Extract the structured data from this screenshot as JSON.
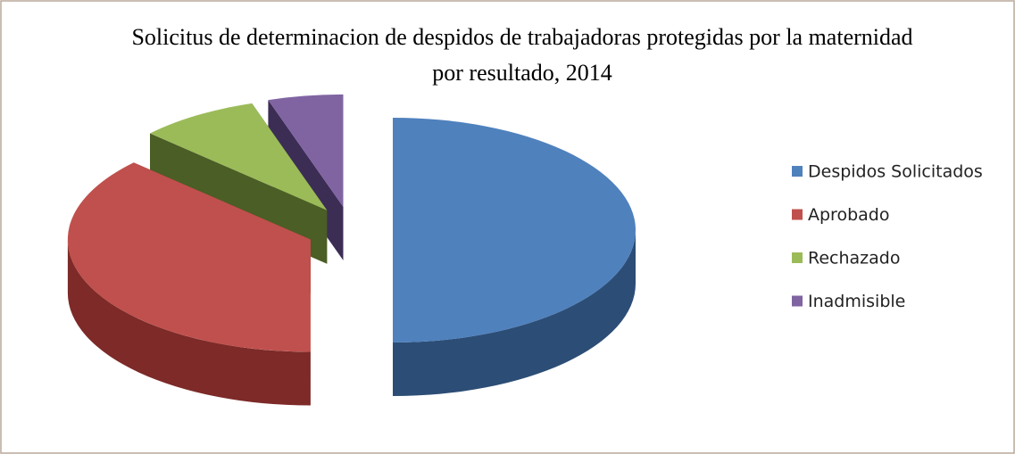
{
  "chart_data": {
    "type": "pie",
    "title": "Solicitus de determinacion de despidos de trabajadoras protegidas por la maternidad por resultado, 2014",
    "categories": [
      "Despidos Solicitados",
      "Aprobado",
      "Rechazado",
      "Inadmisible"
    ],
    "values": [
      50,
      37,
      8,
      5
    ],
    "colors": [
      "#4f81bd",
      "#c0504d",
      "#9bbb59",
      "#8064a2"
    ],
    "side_colors": [
      "#2c4d75",
      "#7d2a28",
      "#4a5e25",
      "#3c2d55"
    ],
    "legend": "right"
  }
}
